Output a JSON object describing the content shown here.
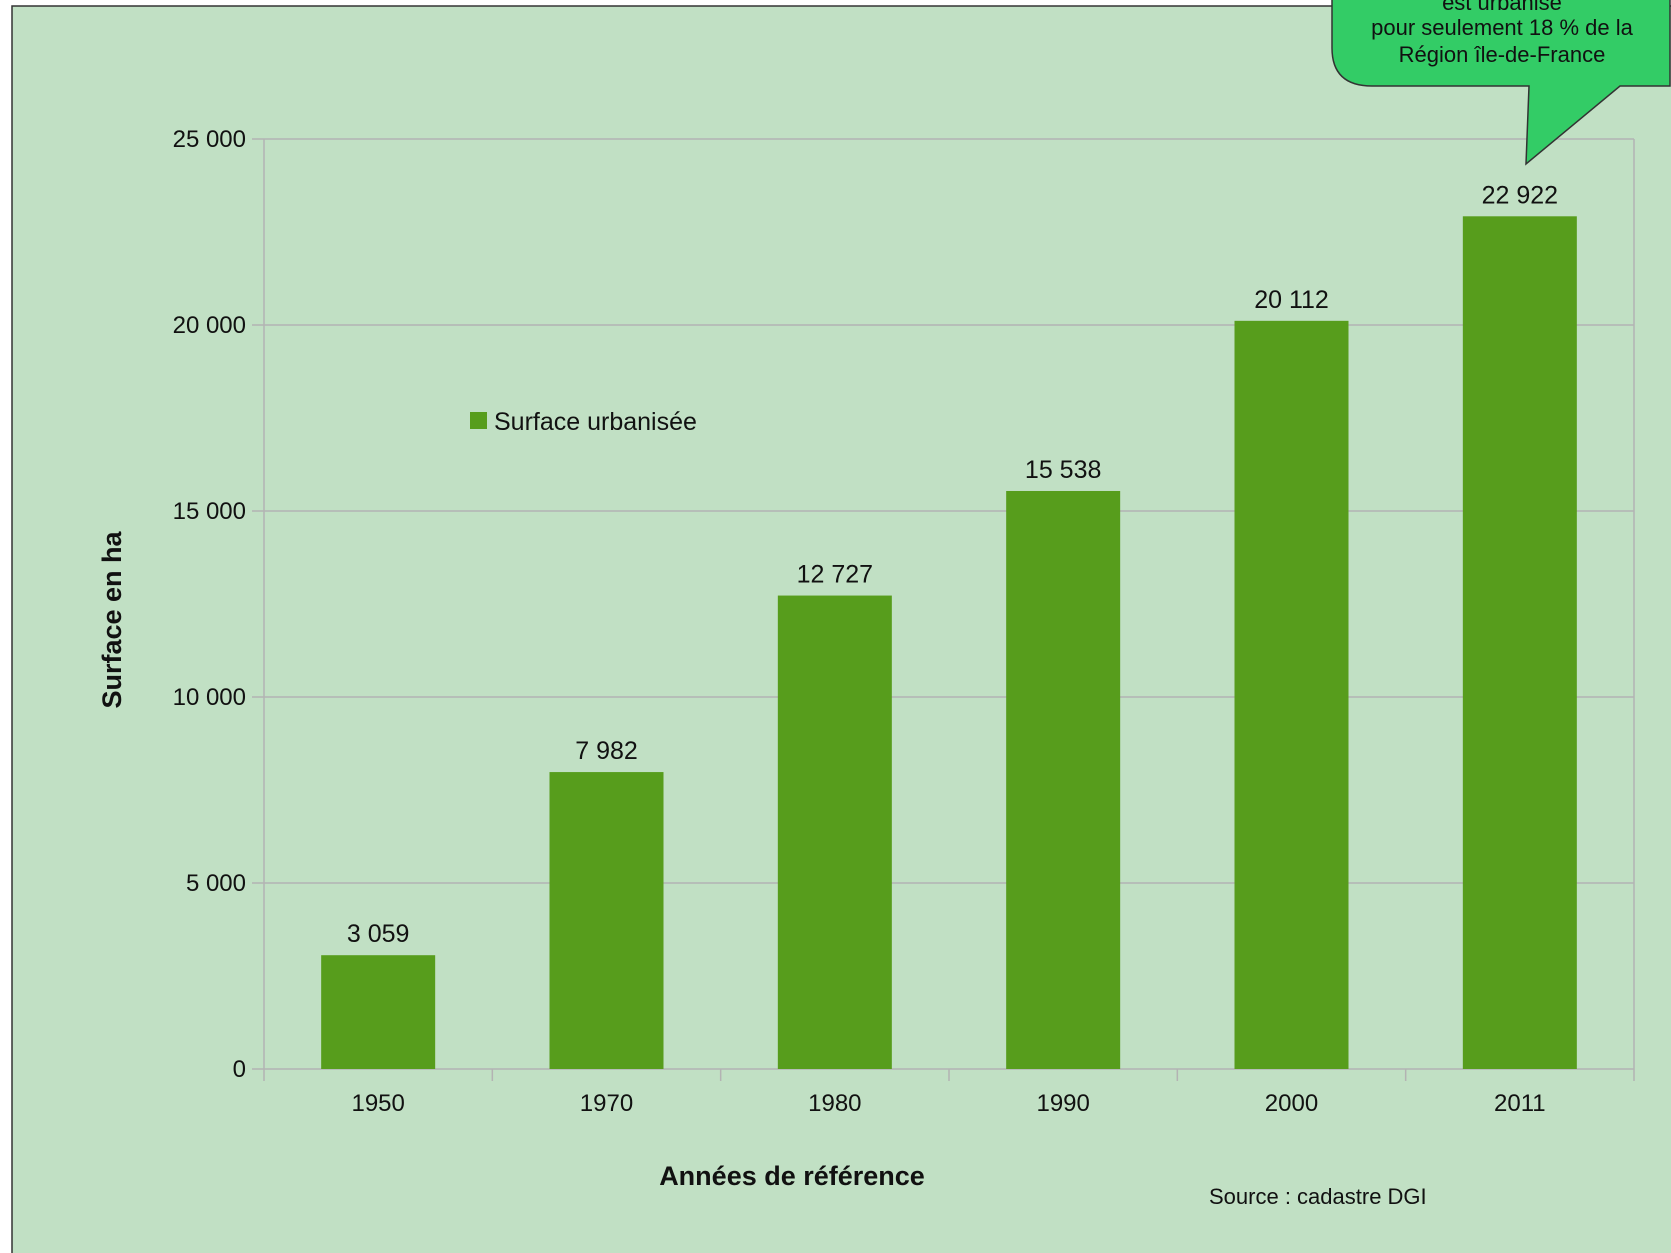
{
  "colors": {
    "background": "#c1e0c4",
    "bar": "#579d1c",
    "grid": "#b3b3b3",
    "callout_fill": "#33cc66",
    "text": "#111111"
  },
  "chart_data": {
    "type": "bar",
    "categories": [
      "1950",
      "1970",
      "1980",
      "1990",
      "2000",
      "2011"
    ],
    "series": [
      {
        "name": "Surface urbanisée",
        "values": [
          3059,
          7982,
          12727,
          15538,
          20112,
          22922
        ]
      }
    ],
    "data_labels": [
      "3 059",
      "7 982",
      "12 727",
      "15 538",
      "20 112",
      "22 922"
    ],
    "xlabel": "Années de référence",
    "ylabel": "Surface en ha",
    "ylim": [
      0,
      25000
    ],
    "yticks": [
      0,
      5000,
      10000,
      15000,
      20000,
      25000
    ],
    "ytick_labels": [
      "0",
      "5 000",
      "10 000",
      "15 000",
      "20 000",
      "25 000"
    ],
    "grid": true,
    "legend": "inside-left",
    "source": "Source : cadastre DGI",
    "callout": {
      "lines": [
        "est urbanisé",
        "pour seulement 18 % de la",
        "Région île-de-France"
      ],
      "points_to": "2011"
    }
  }
}
